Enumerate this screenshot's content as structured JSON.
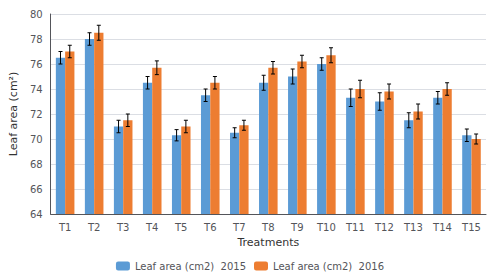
{
  "chart_data": {
    "type": "bar",
    "xlabel": "Treatments",
    "ylabel": "Leaf area (cm²)",
    "categories": [
      "T1",
      "T2",
      "T3",
      "T4",
      "T5",
      "T6",
      "T7",
      "T8",
      "T9",
      "T10",
      "T11",
      "T12",
      "T13",
      "T14",
      "T15"
    ],
    "series": [
      {
        "name": "Leaf area (cm2)  2015",
        "color": "#5B9BD5",
        "values": [
          76.5,
          78.0,
          71.0,
          74.5,
          70.3,
          73.5,
          70.5,
          74.5,
          75.0,
          76.0,
          73.3,
          73.0,
          71.5,
          73.3,
          70.3
        ],
        "errors": [
          0.5,
          0.5,
          0.5,
          0.5,
          0.45,
          0.5,
          0.4,
          0.6,
          0.6,
          0.5,
          0.7,
          0.7,
          0.6,
          0.5,
          0.5
        ]
      },
      {
        "name": "Leaf area (cm2)  2016",
        "color": "#ED7D31",
        "values": [
          77.0,
          78.5,
          71.5,
          75.7,
          71.0,
          74.5,
          71.1,
          75.7,
          76.2,
          76.7,
          74.0,
          73.8,
          72.2,
          74.0,
          70.0
        ],
        "errors": [
          0.5,
          0.6,
          0.5,
          0.55,
          0.5,
          0.5,
          0.4,
          0.5,
          0.5,
          0.6,
          0.7,
          0.6,
          0.6,
          0.5,
          0.4
        ]
      }
    ],
    "ylim": [
      64,
      80
    ],
    "yticks": [
      64,
      66,
      68,
      70,
      72,
      74,
      76,
      78,
      80
    ],
    "grid": true,
    "legend": "bottom"
  }
}
